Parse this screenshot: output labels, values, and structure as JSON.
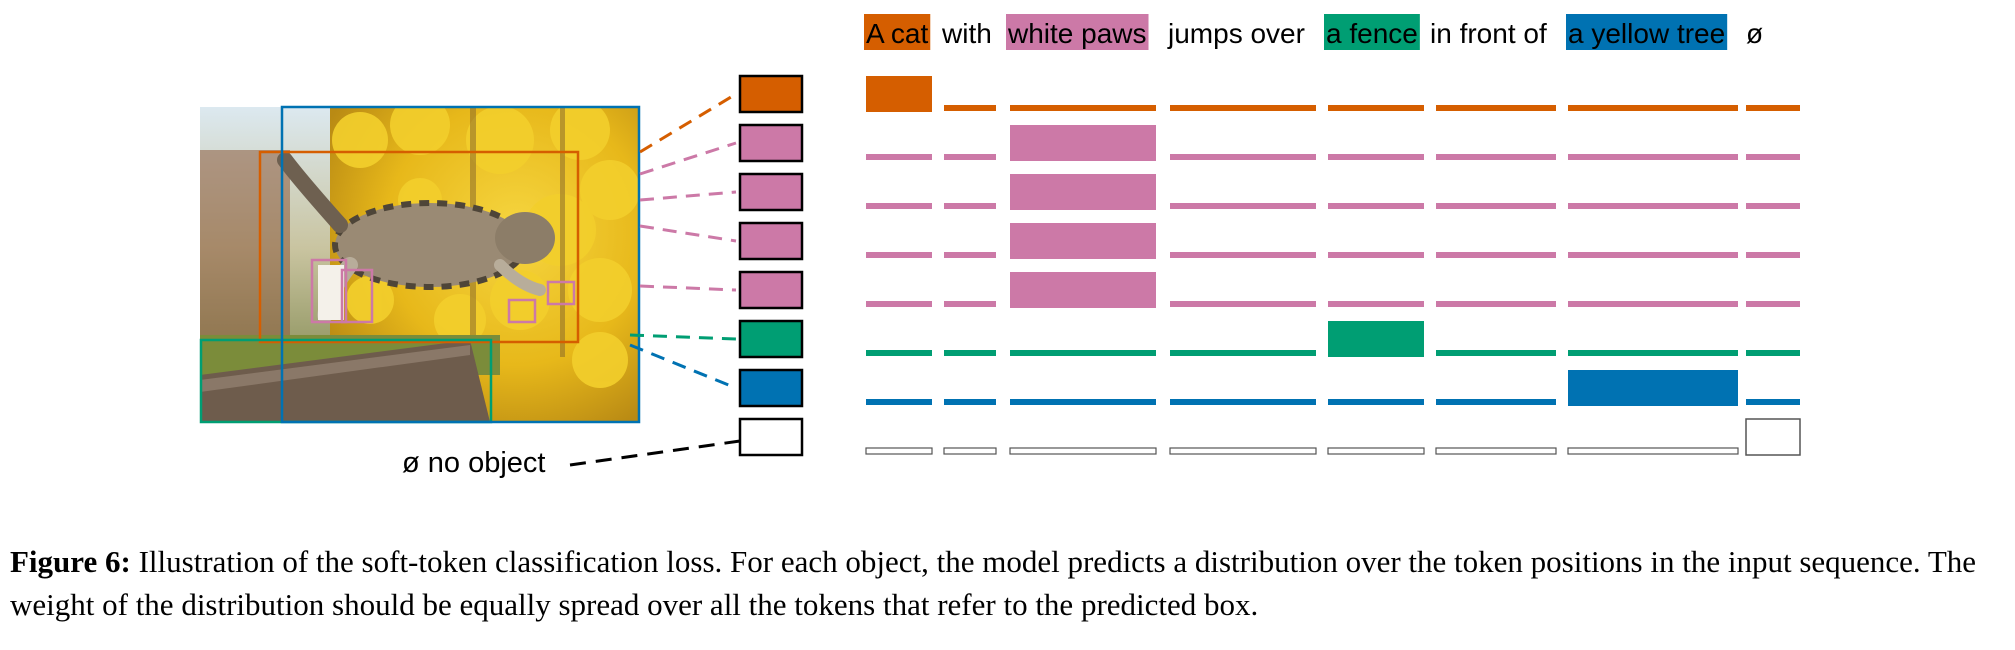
{
  "figure": {
    "sentence": [
      {
        "text": "A cat",
        "color": "#D55E00",
        "highlight": true
      },
      {
        "text": "with",
        "color": null,
        "highlight": false
      },
      {
        "text": "white paws",
        "color": "#CC79A7",
        "highlight": true
      },
      {
        "text": "jumps over",
        "color": null,
        "highlight": false
      },
      {
        "text": "a fence",
        "color": "#009E73",
        "highlight": true
      },
      {
        "text": "in front of",
        "color": null,
        "highlight": false
      },
      {
        "text": "a yellow tree",
        "color": "#0072B2",
        "highlight": true
      },
      {
        "text": "ø",
        "color": null,
        "highlight": false
      }
    ],
    "no_object_label": "ø no object",
    "predictions": [
      {
        "color": "#D55E00",
        "target_token": 0
      },
      {
        "color": "#CC79A7",
        "target_token": 2
      },
      {
        "color": "#CC79A7",
        "target_token": 2
      },
      {
        "color": "#CC79A7",
        "target_token": 2
      },
      {
        "color": "#CC79A7",
        "target_token": 2
      },
      {
        "color": "#009E73",
        "target_token": 4
      },
      {
        "color": "#0072B2",
        "target_token": 6
      },
      {
        "color": "#FFFFFF",
        "target_token": 7
      }
    ],
    "photo_description": "cat jumping over a fence in front of a yellow tree",
    "colors": {
      "orange": "#D55E00",
      "pink": "#CC79A7",
      "green": "#009E73",
      "blue": "#0072B2",
      "black": "#000000"
    }
  },
  "caption": {
    "label": "Figure 6:",
    "text": " Illustration of the soft-token classification loss. For each object, the model predicts a distribution over the token positions in the input sequence. The weight of the distribution should be equally spread over all the tokens that refer to the predicted box."
  }
}
